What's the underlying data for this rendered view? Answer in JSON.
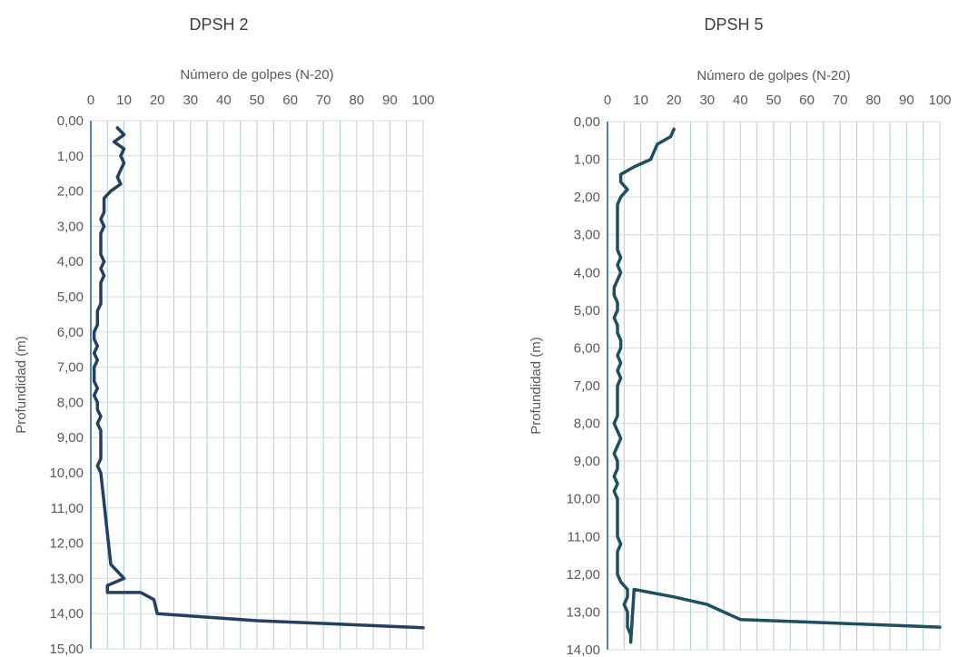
{
  "chart_data": [
    {
      "type": "line",
      "title": "DPSH 2",
      "xlabel": "Número de golpes (N-20)",
      "ylabel": "Profundidad (m)",
      "xlim": [
        0,
        100
      ],
      "ylim": [
        0,
        15
      ],
      "y_inverted": true,
      "x_axis_position": "top",
      "x_ticks": [
        "0",
        "10",
        "20",
        "30",
        "40",
        "50",
        "60",
        "70",
        "80",
        "90",
        "100"
      ],
      "y_ticks": [
        "0,00",
        "1,00",
        "2,00",
        "3,00",
        "4,00",
        "5,00",
        "6,00",
        "7,00",
        "8,00",
        "9,00",
        "10,00",
        "11,00",
        "12,00",
        "13,00",
        "14,00",
        "15,00"
      ],
      "grid": true,
      "line_color": "#243f60",
      "series": [
        {
          "x": [
            8,
            10,
            7,
            10,
            9,
            10,
            9,
            8,
            9,
            6,
            4,
            4,
            4,
            3,
            4,
            3,
            3,
            3,
            3,
            4,
            3,
            4,
            3,
            3,
            3,
            3,
            2,
            2,
            2,
            1,
            1,
            2,
            1,
            2,
            1,
            1,
            1,
            2,
            1,
            2,
            2,
            3,
            2,
            3,
            3,
            3,
            3,
            3,
            2,
            3,
            6,
            10,
            5,
            5,
            15,
            19,
            20,
            50,
            100
          ],
          "y": [
            0.2,
            0.4,
            0.6,
            0.8,
            1.0,
            1.2,
            1.4,
            1.6,
            1.8,
            2.0,
            2.2,
            2.4,
            2.6,
            2.8,
            3.0,
            3.2,
            3.4,
            3.6,
            3.8,
            4.0,
            4.2,
            4.4,
            4.6,
            4.8,
            5.0,
            5.2,
            5.4,
            5.6,
            5.8,
            6.0,
            6.2,
            6.4,
            6.6,
            6.8,
            7.0,
            7.2,
            7.4,
            7.6,
            7.8,
            8.0,
            8.2,
            8.4,
            8.6,
            8.8,
            9.0,
            9.2,
            9.4,
            9.6,
            9.8,
            10.0,
            12.6,
            13.0,
            13.2,
            13.4,
            13.4,
            13.6,
            14.0,
            14.2,
            14.4
          ]
        }
      ]
    },
    {
      "type": "line",
      "title": "DPSH 5",
      "xlabel": "Número de golpes (N-20)",
      "ylabel": "Profundidad (m)",
      "xlim": [
        0,
        100
      ],
      "ylim": [
        0,
        14
      ],
      "y_inverted": true,
      "x_axis_position": "top",
      "x_ticks": [
        "0",
        "10",
        "20",
        "30",
        "40",
        "50",
        "60",
        "70",
        "80",
        "90",
        "100"
      ],
      "y_ticks": [
        "0,00",
        "1,00",
        "2,00",
        "3,00",
        "4,00",
        "5,00",
        "6,00",
        "7,00",
        "8,00",
        "9,00",
        "10,00",
        "11,00",
        "12,00",
        "13,00",
        "14,00"
      ],
      "grid": true,
      "line_color": "#1e4f5e",
      "series": [
        {
          "x": [
            20,
            19,
            15,
            14,
            13,
            8,
            4,
            4,
            6,
            4,
            3,
            3,
            3,
            3,
            3,
            3,
            3,
            4,
            3,
            4,
            3,
            2,
            2,
            3,
            3,
            2,
            3,
            3,
            4,
            4,
            3,
            4,
            3,
            4,
            3,
            3,
            3,
            3,
            3,
            2,
            3,
            4,
            3,
            2,
            3,
            3,
            2,
            3,
            2,
            3,
            3,
            3,
            3,
            3,
            3,
            4,
            3,
            3,
            3,
            3,
            4,
            6,
            6,
            5,
            6,
            6,
            6,
            7,
            7,
            8,
            20,
            30,
            40,
            100
          ],
          "y": [
            0.2,
            0.4,
            0.6,
            0.8,
            1.0,
            1.2,
            1.4,
            1.6,
            1.8,
            2.0,
            2.2,
            2.4,
            2.6,
            2.8,
            3.0,
            3.2,
            3.4,
            3.6,
            3.8,
            4.0,
            4.2,
            4.4,
            4.6,
            4.8,
            5.0,
            5.2,
            5.4,
            5.6,
            5.8,
            6.0,
            6.2,
            6.4,
            6.6,
            6.8,
            7.0,
            7.2,
            7.4,
            7.6,
            7.8,
            8.0,
            8.2,
            8.4,
            8.6,
            8.8,
            9.0,
            9.2,
            9.4,
            9.6,
            9.8,
            10.0,
            10.2,
            10.4,
            10.6,
            10.8,
            11.0,
            11.2,
            11.4,
            11.6,
            11.8,
            12.0,
            12.2,
            12.4,
            12.6,
            12.8,
            13.0,
            13.2,
            13.4,
            13.6,
            13.8,
            12.4,
            12.6,
            12.8,
            13.2,
            13.4
          ]
        }
      ]
    }
  ]
}
